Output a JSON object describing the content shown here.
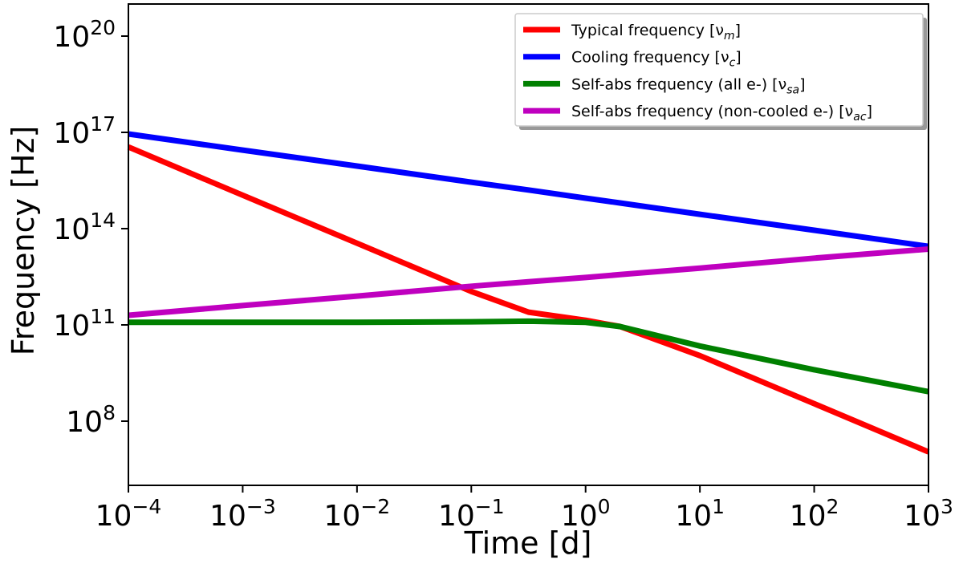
{
  "chart_data": {
    "type": "line",
    "x_label": "Time [d]",
    "y_label": "Frequency [Hz]",
    "x": [
      0.0001,
      0.001,
      0.01,
      0.1,
      0.316,
      1,
      2,
      10,
      100,
      1000
    ],
    "series": [
      {
        "name": "Typical frequency [ν_m]",
        "color": "#ff0000",
        "values": [
          3.5e+16,
          1100000000000000.0,
          35000000000000.0,
          1100000000000.0,
          250000000000.0,
          140000000000.0,
          89000000000.0,
          11000000000.0,
          350000000.0,
          11000000.0
        ]
      },
      {
        "name": "Cooling frequency [ν_c]",
        "color": "#0000ff",
        "values": [
          8.9e+16,
          2.8e+16,
          8900000000000000.0,
          2800000000000000.0,
          1600000000000000.0,
          890000000000000.0,
          630000000000000.0,
          280000000000000.0,
          89000000000000.0,
          28000000000000.0
        ]
      },
      {
        "name": "Self-abs frequency (all e-) [ν_sa]",
        "color": "#008000",
        "values": [
          120000000000.0,
          120000000000.0,
          120000000000.0,
          125000000000.0,
          130000000000.0,
          120000000000.0,
          89000000000.0,
          22000000000.0,
          4000000000.0,
          830000000.0
        ]
      },
      {
        "name": "Self-abs frequency (non-cooled e-) [ν_ac]",
        "color": "#bf00bf",
        "values": [
          200000000000.0,
          400000000000.0,
          790000000000.0,
          1600000000000.0,
          2200000000000.0,
          3000000000000.0,
          3700000000000.0,
          5900000000000.0,
          12000000000000.0,
          23000000000000.0
        ]
      }
    ],
    "xscale": "log",
    "yscale": "log",
    "xlim": [
      0.0001,
      1000
    ],
    "ylim": [
      1000000.0,
      1e+21
    ],
    "xticks": [
      {
        "value": 0.0001,
        "label": "10^−4"
      },
      {
        "value": 0.001,
        "label": "10^−3"
      },
      {
        "value": 0.01,
        "label": "10^−2"
      },
      {
        "value": 0.1,
        "label": "10^−1"
      },
      {
        "value": 1,
        "label": "10^0"
      },
      {
        "value": 10,
        "label": "10^1"
      },
      {
        "value": 100,
        "label": "10^2"
      },
      {
        "value": 1000,
        "label": "10^3"
      }
    ],
    "yticks": [
      {
        "value": 100000000.0,
        "label": "10^8"
      },
      {
        "value": 100000000000.0,
        "label": "10^11"
      },
      {
        "value": 100000000000000.0,
        "label": "10^14"
      },
      {
        "value": 1e+17,
        "label": "10^17"
      },
      {
        "value": 1e+20,
        "label": "10^20"
      }
    ],
    "legend": "upper right",
    "axis_label_color": "#0000ff"
  }
}
